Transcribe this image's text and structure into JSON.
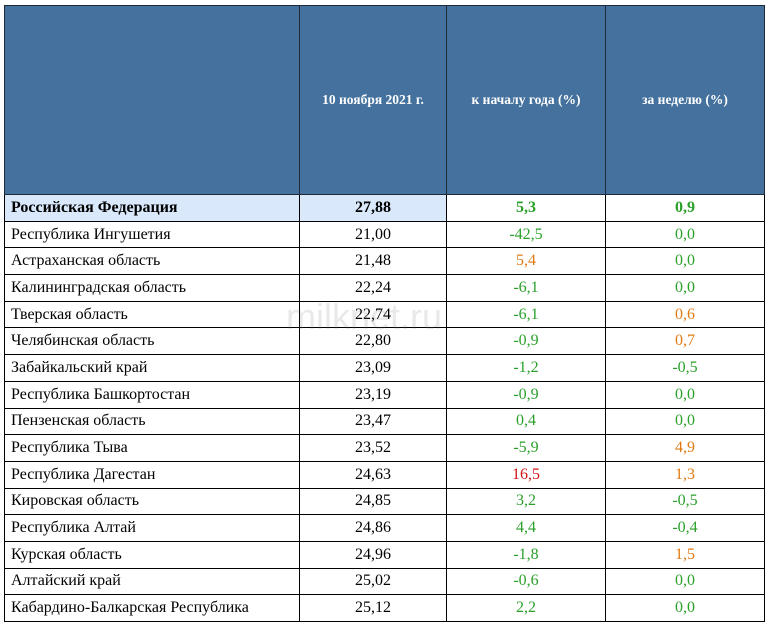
{
  "header": {
    "col_region": "",
    "col_price": "10 ноября 2021 г.",
    "col_ytd": "к началу года (%)",
    "col_week": "за неделю (%)"
  },
  "watermark": "milknet.ru",
  "colors": {
    "header_bg": "#44719d",
    "highlight": "#d9e8fb",
    "green": "#2aa02a",
    "orange": "#e07a12",
    "red": "#d01515"
  },
  "rows": [
    {
      "region": "Российская Федерация",
      "price": "27,88",
      "ytd": "5,3",
      "week": "0,9"
    },
    {
      "region": "Республика Ингушетия",
      "price": "21,00",
      "ytd": "-42,5",
      "week": "0,0"
    },
    {
      "region": "Астраханская область",
      "price": "21,48",
      "ytd": "5,4",
      "week": "0,0"
    },
    {
      "region": "Калининградская область",
      "price": "22,24",
      "ytd": "-6,1",
      "week": "0,0"
    },
    {
      "region": "Тверская область",
      "price": "22,74",
      "ytd": "-6,1",
      "week": "0,6"
    },
    {
      "region": "Челябинская область",
      "price": "22,80",
      "ytd": "-0,9",
      "week": "0,7"
    },
    {
      "region": "Забайкальский край",
      "price": "23,09",
      "ytd": "-1,2",
      "week": "-0,5"
    },
    {
      "region": "Республика Башкортостан",
      "price": "23,19",
      "ytd": "-0,9",
      "week": "0,0"
    },
    {
      "region": "Пензенская область",
      "price": "23,47",
      "ytd": "0,4",
      "week": "0,0"
    },
    {
      "region": "Республика Тыва",
      "price": "23,52",
      "ytd": "-5,9",
      "week": "4,9"
    },
    {
      "region": "Республика Дагестан",
      "price": "24,63",
      "ytd": "16,5",
      "week": "1,3"
    },
    {
      "region": "Кировская область",
      "price": "24,85",
      "ytd": "3,2",
      "week": "-0,5"
    },
    {
      "region": "Республика Алтай",
      "price": "24,86",
      "ytd": "4,4",
      "week": "-0,4"
    },
    {
      "region": "Курская область",
      "price": "24,96",
      "ytd": "-1,8",
      "week": "1,5"
    },
    {
      "region": "Алтайский край",
      "price": "25,02",
      "ytd": "-0,6",
      "week": "0,0"
    },
    {
      "region": "Кабардино-Балкарская Республика",
      "price": "25,12",
      "ytd": "2,2",
      "week": "0,0"
    }
  ]
}
